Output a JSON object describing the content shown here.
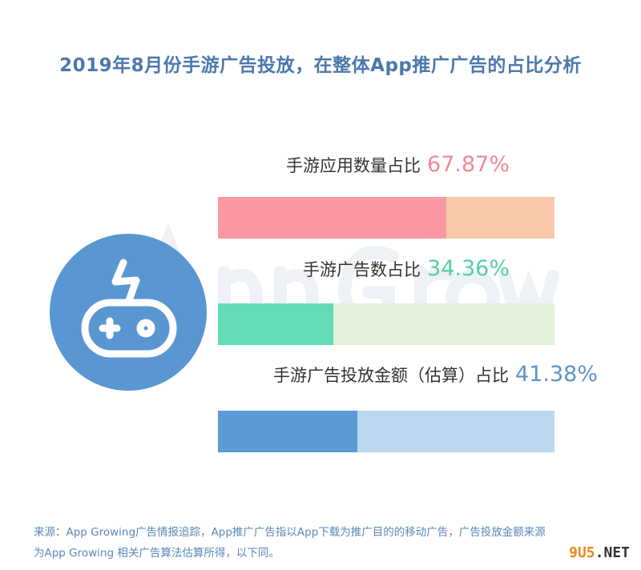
{
  "title": "2019年8月份手游广告投放，在整体App推广广告的占比分析",
  "watermark": "App Growing",
  "site_watermark": {
    "accent": "9U5",
    "rest": ".NET"
  },
  "chart_data": {
    "type": "bar",
    "orientation": "horizontal-stacked-100",
    "title": "2019年8月份手游广告投放，在整体App推广广告的占比分析",
    "xlim": [
      0,
      100
    ],
    "series": [
      {
        "label": "手游应用数量占比",
        "value_text": "67.87%",
        "value": 67.87,
        "fill_color": "#fb97a3",
        "rest_color": "#f7c8a9",
        "text_color": "#ee8a96"
      },
      {
        "label": "手游广告数占比",
        "value_text": "34.36%",
        "value": 34.36,
        "fill_color": "#63dbb7",
        "rest_color": "#e3f0da",
        "text_color": "#55cfa5"
      },
      {
        "label": "手游广告投放金额（估算）占比",
        "value_text": "41.38%",
        "value": 41.38,
        "fill_color": "#5b9bd5",
        "rest_color": "#bcd7ee",
        "text_color": "#5b95c8"
      }
    ]
  },
  "source_note": {
    "line1": "来源：App Growing广告情报追踪，App推广广告指以App下载为推广目的的移动广告，广告投放金额来源",
    "line2": "为App Growing 相关广告算法估算所得，以下同。"
  }
}
